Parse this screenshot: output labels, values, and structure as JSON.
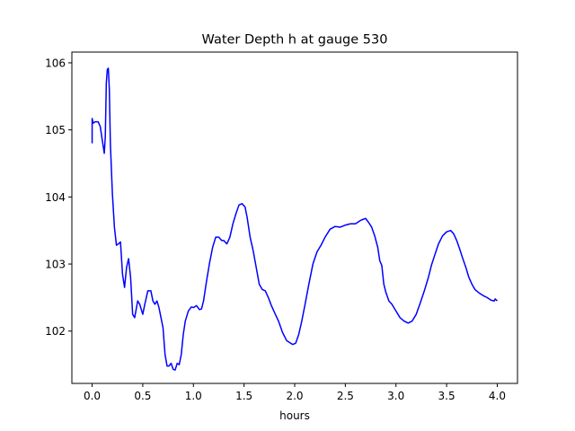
{
  "chart_data": {
    "type": "line",
    "title": "Water Depth h at gauge 530",
    "xlabel": "hours",
    "ylabel": "",
    "xlim": [
      -0.2,
      4.2
    ],
    "ylim": [
      101.22,
      106.16
    ],
    "xticks": [
      0.0,
      0.5,
      1.0,
      1.5,
      2.0,
      2.5,
      3.0,
      3.5,
      4.0
    ],
    "xtick_labels": [
      "0.0",
      "0.5",
      "1.0",
      "1.5",
      "2.0",
      "2.5",
      "3.0",
      "3.5",
      "4.0"
    ],
    "yticks": [
      102,
      103,
      104,
      105,
      106
    ],
    "ytick_labels": [
      "102",
      "103",
      "104",
      "105",
      "106"
    ],
    "grid": false,
    "series": [
      {
        "color": "#0000ff",
        "x": [
          0.0,
          0.0,
          0.01,
          0.03,
          0.06,
          0.08,
          0.1,
          0.12,
          0.13,
          0.14,
          0.15,
          0.16,
          0.17,
          0.18,
          0.2,
          0.22,
          0.24,
          0.26,
          0.28,
          0.3,
          0.32,
          0.34,
          0.36,
          0.38,
          0.4,
          0.42,
          0.45,
          0.47,
          0.5,
          0.52,
          0.55,
          0.58,
          0.6,
          0.62,
          0.64,
          0.66,
          0.68,
          0.7,
          0.72,
          0.74,
          0.76,
          0.78,
          0.8,
          0.82,
          0.84,
          0.86,
          0.88,
          0.9,
          0.92,
          0.95,
          0.98,
          1.0,
          1.03,
          1.06,
          1.08,
          1.1,
          1.13,
          1.16,
          1.19,
          1.22,
          1.25,
          1.28,
          1.3,
          1.33,
          1.36,
          1.39,
          1.42,
          1.45,
          1.48,
          1.51,
          1.53,
          1.56,
          1.59,
          1.62,
          1.65,
          1.68,
          1.71,
          1.74,
          1.77,
          1.8,
          1.84,
          1.88,
          1.92,
          1.95,
          1.98,
          2.01,
          2.04,
          2.07,
          2.1,
          2.14,
          2.18,
          2.22,
          2.26,
          2.3,
          2.35,
          2.4,
          2.45,
          2.5,
          2.55,
          2.6,
          2.65,
          2.7,
          2.73,
          2.76,
          2.79,
          2.82,
          2.84,
          2.86,
          2.88,
          2.9,
          2.93,
          2.96,
          3.0,
          3.04,
          3.08,
          3.12,
          3.16,
          3.2,
          3.24,
          3.28,
          3.32,
          3.35,
          3.38,
          3.42,
          3.46,
          3.5,
          3.54,
          3.57,
          3.6,
          3.63,
          3.66,
          3.69,
          3.72,
          3.75,
          3.78,
          3.82,
          3.86,
          3.9,
          3.94,
          3.97,
          3.98,
          4.0
        ],
        "y": [
          104.8,
          105.17,
          105.1,
          105.12,
          105.12,
          105.05,
          104.85,
          104.65,
          104.9,
          105.7,
          105.9,
          105.92,
          105.6,
          104.8,
          104.05,
          103.55,
          103.28,
          103.3,
          103.33,
          102.85,
          102.65,
          102.95,
          103.08,
          102.8,
          102.25,
          102.2,
          102.45,
          102.4,
          102.25,
          102.4,
          102.6,
          102.6,
          102.45,
          102.4,
          102.45,
          102.35,
          102.2,
          102.05,
          101.65,
          101.48,
          101.48,
          101.52,
          101.43,
          101.42,
          101.52,
          101.5,
          101.65,
          101.95,
          102.15,
          102.3,
          102.36,
          102.35,
          102.38,
          102.32,
          102.33,
          102.45,
          102.75,
          103.02,
          103.25,
          103.4,
          103.4,
          103.35,
          103.35,
          103.3,
          103.4,
          103.6,
          103.75,
          103.88,
          103.9,
          103.85,
          103.7,
          103.4,
          103.2,
          102.95,
          102.7,
          102.62,
          102.6,
          102.5,
          102.38,
          102.28,
          102.15,
          101.98,
          101.86,
          101.83,
          101.8,
          101.82,
          101.95,
          102.15,
          102.38,
          102.7,
          103.0,
          103.18,
          103.28,
          103.4,
          103.52,
          103.56,
          103.55,
          103.58,
          103.6,
          103.6,
          103.65,
          103.68,
          103.62,
          103.55,
          103.42,
          103.25,
          103.05,
          102.98,
          102.7,
          102.58,
          102.45,
          102.4,
          102.3,
          102.2,
          102.15,
          102.12,
          102.15,
          102.25,
          102.42,
          102.6,
          102.8,
          102.98,
          103.12,
          103.3,
          103.42,
          103.48,
          103.5,
          103.45,
          103.35,
          103.22,
          103.08,
          102.95,
          102.8,
          102.7,
          102.62,
          102.57,
          102.53,
          102.5,
          102.46,
          102.45,
          102.48,
          102.45
        ]
      }
    ]
  }
}
